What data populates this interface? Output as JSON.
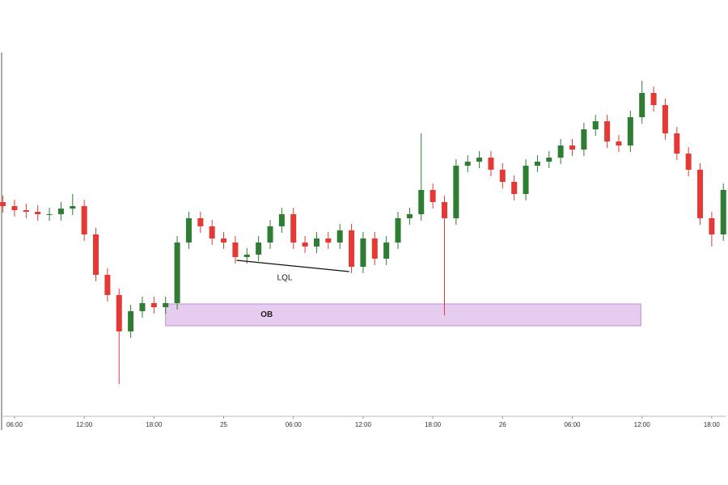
{
  "chart_data": {
    "type": "candlestick",
    "x": [
      -1,
      0,
      1,
      2,
      3,
      4,
      5,
      6,
      7,
      8,
      9,
      10,
      11,
      12,
      13,
      14,
      15,
      16,
      17,
      18,
      19,
      20,
      21,
      22,
      23,
      24,
      25,
      26,
      27,
      28,
      29,
      30,
      31,
      32,
      33,
      34,
      35,
      36,
      37,
      38,
      39,
      40,
      41,
      42,
      43,
      44,
      45,
      46,
      47,
      48,
      49,
      50,
      51,
      52,
      53,
      54,
      55,
      56,
      57,
      58,
      59,
      60,
      61
    ],
    "open": [
      265,
      260,
      255,
      253,
      250,
      250,
      257,
      260,
      225,
      175,
      150,
      105,
      130,
      140,
      135,
      140,
      215,
      245,
      235,
      220,
      215,
      197,
      200,
      215,
      235,
      250,
      215,
      210,
      220,
      215,
      230,
      185,
      220,
      195,
      215,
      245,
      250,
      280,
      265,
      245,
      310,
      315,
      320,
      305,
      290,
      275,
      310,
      315,
      320,
      335,
      330,
      355,
      365,
      340,
      335,
      370,
      400,
      385,
      350,
      325,
      305,
      245,
      225
    ],
    "high": [
      273,
      268,
      263,
      261,
      258,
      265,
      275,
      268,
      233,
      183,
      158,
      138,
      148,
      148,
      148,
      223,
      253,
      253,
      243,
      228,
      223,
      208,
      223,
      243,
      258,
      258,
      223,
      228,
      228,
      238,
      238,
      228,
      228,
      223,
      253,
      258,
      350,
      288,
      273,
      318,
      323,
      328,
      328,
      313,
      298,
      318,
      323,
      328,
      343,
      343,
      363,
      373,
      373,
      348,
      378,
      415,
      408,
      393,
      358,
      333,
      313,
      253,
      288
    ],
    "low": [
      252,
      247,
      245,
      242,
      242,
      242,
      249,
      217,
      167,
      142,
      40,
      97,
      122,
      127,
      127,
      132,
      207,
      227,
      212,
      207,
      189,
      189,
      192,
      207,
      227,
      207,
      202,
      202,
      207,
      207,
      177,
      177,
      187,
      187,
      207,
      237,
      242,
      257,
      125,
      237,
      302,
      307,
      297,
      282,
      267,
      267,
      302,
      307,
      312,
      322,
      322,
      347,
      332,
      327,
      327,
      362,
      377,
      342,
      317,
      297,
      237,
      210,
      217
    ],
    "close": [
      260,
      255,
      253,
      250,
      250,
      257,
      260,
      225,
      175,
      150,
      105,
      130,
      140,
      135,
      140,
      215,
      245,
      235,
      220,
      215,
      197,
      200,
      215,
      235,
      250,
      215,
      210,
      220,
      215,
      230,
      185,
      220,
      195,
      215,
      245,
      250,
      280,
      265,
      245,
      310,
      315,
      320,
      305,
      290,
      275,
      310,
      315,
      320,
      335,
      330,
      355,
      365,
      340,
      335,
      370,
      400,
      385,
      350,
      325,
      305,
      245,
      225,
      280
    ],
    "up_color": "#2e7d32",
    "down_color": "#e53935",
    "xlim": [
      -1.25,
      61.4
    ],
    "ylim": [
      0,
      450
    ],
    "xticks": [
      {
        "value": 0,
        "label": "06:00"
      },
      {
        "value": 6,
        "label": "12:00"
      },
      {
        "value": 12,
        "label": "18:00"
      },
      {
        "value": 18,
        "label": "25"
      },
      {
        "value": 24,
        "label": "06:00"
      },
      {
        "value": 30,
        "label": "12:00"
      },
      {
        "value": 36,
        "label": "18:00"
      },
      {
        "value": 42,
        "label": "26"
      },
      {
        "value": 48,
        "label": "06:00"
      },
      {
        "value": 54,
        "label": "12:00"
      },
      {
        "value": 60,
        "label": "18:00"
      }
    ],
    "zone": {
      "label": "OB",
      "x": [
        13,
        53.9
      ],
      "y": [
        112,
        139
      ],
      "color": "#e6cdf0"
    },
    "trendline": {
      "label": "LQL",
      "x": [
        19.1,
        28.8
      ],
      "y": [
        193,
        179
      ]
    }
  }
}
